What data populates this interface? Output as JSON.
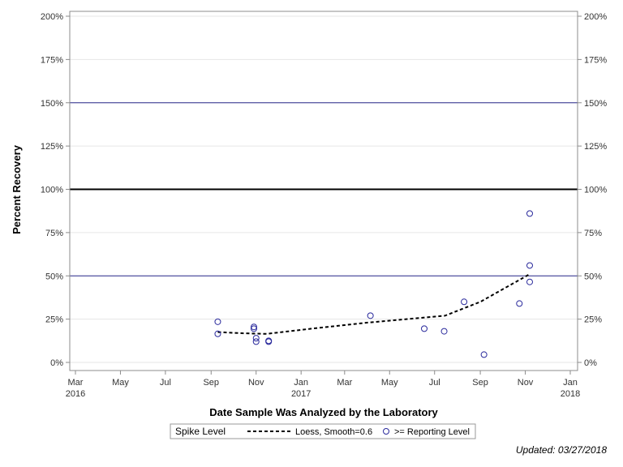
{
  "chart_data": {
    "type": "scatter",
    "title": "",
    "xlabel": "Date Sample Was Analyzed by the Laboratory",
    "ylabel": "Percent Recovery",
    "ylim": [
      0,
      200
    ],
    "xlim": [
      "2016-03-01",
      "2018-01-01"
    ],
    "y_ticks": [
      {
        "value": 0,
        "label": "0%"
      },
      {
        "value": 25,
        "label": "25%"
      },
      {
        "value": 50,
        "label": "50%"
      },
      {
        "value": 75,
        "label": "75%"
      },
      {
        "value": 100,
        "label": "100%"
      },
      {
        "value": 125,
        "label": "125%"
      },
      {
        "value": 150,
        "label": "150%"
      },
      {
        "value": 175,
        "label": "175%"
      },
      {
        "value": 200,
        "label": "200%"
      }
    ],
    "x_ticks": [
      {
        "date": "2016-03-01",
        "label": "Mar",
        "year_label": "2016"
      },
      {
        "date": "2016-05-01",
        "label": "May",
        "year_label": ""
      },
      {
        "date": "2016-07-01",
        "label": "Jul",
        "year_label": ""
      },
      {
        "date": "2016-09-01",
        "label": "Sep",
        "year_label": ""
      },
      {
        "date": "2016-11-01",
        "label": "Nov",
        "year_label": ""
      },
      {
        "date": "2017-01-01",
        "label": "Jan",
        "year_label": "2017"
      },
      {
        "date": "2017-03-01",
        "label": "Mar",
        "year_label": ""
      },
      {
        "date": "2017-05-01",
        "label": "May",
        "year_label": ""
      },
      {
        "date": "2017-07-01",
        "label": "Jul",
        "year_label": ""
      },
      {
        "date": "2017-09-01",
        "label": "Sep",
        "year_label": ""
      },
      {
        "date": "2017-11-01",
        "label": "Nov",
        "year_label": ""
      },
      {
        "date": "2018-01-01",
        "label": "Jan",
        "year_label": "2018"
      }
    ],
    "reference_lines": [
      {
        "value": 50,
        "color": "#2a2a8c",
        "width": 1
      },
      {
        "value": 100,
        "color": "#000000",
        "width": 2
      },
      {
        "value": 150,
        "color": "#2a2a8c",
        "width": 1
      }
    ],
    "grid": true,
    "legend_position": "bottom",
    "series": [
      {
        "name": ">= Reporting Level",
        "kind": "scatter",
        "color": "#2a2a9c",
        "points": [
          {
            "x": "2016-09-10",
            "y": 23.5
          },
          {
            "x": "2016-09-10",
            "y": 16.5
          },
          {
            "x": "2016-10-29",
            "y": 20.5
          },
          {
            "x": "2016-10-29",
            "y": 19.5
          },
          {
            "x": "2016-11-01",
            "y": 14.0
          },
          {
            "x": "2016-11-01",
            "y": 12.0
          },
          {
            "x": "2016-11-18",
            "y": 12.5
          },
          {
            "x": "2016-11-18",
            "y": 12.0
          },
          {
            "x": "2017-04-05",
            "y": 27.0
          },
          {
            "x": "2017-06-17",
            "y": 19.5
          },
          {
            "x": "2017-07-14",
            "y": 18.0
          },
          {
            "x": "2017-08-10",
            "y": 35.0
          },
          {
            "x": "2017-09-06",
            "y": 4.5
          },
          {
            "x": "2017-10-24",
            "y": 34.0
          },
          {
            "x": "2017-11-07",
            "y": 86.0
          },
          {
            "x": "2017-11-07",
            "y": 56.0
          },
          {
            "x": "2017-11-07",
            "y": 46.5
          }
        ]
      },
      {
        "name": "Loess, Smooth=0.6",
        "kind": "line",
        "dash": true,
        "color": "#000000",
        "points": [
          {
            "x": "2016-09-10",
            "y": 17.5
          },
          {
            "x": "2016-10-15",
            "y": 16.8
          },
          {
            "x": "2016-11-15",
            "y": 16.5
          },
          {
            "x": "2017-01-15",
            "y": 19.5
          },
          {
            "x": "2017-04-01",
            "y": 23.0
          },
          {
            "x": "2017-07-15",
            "y": 27.0
          },
          {
            "x": "2017-09-01",
            "y": 35.0
          },
          {
            "x": "2017-11-07",
            "y": 51.0
          }
        ]
      }
    ]
  },
  "legend": {
    "title": "Spike Level",
    "items": [
      {
        "label": "Loess, Smooth=0.6",
        "symbol": "dashed-line"
      },
      {
        "label": ">= Reporting Level",
        "symbol": "circle"
      }
    ]
  },
  "footer": {
    "updated": "Updated: 03/27/2018"
  }
}
